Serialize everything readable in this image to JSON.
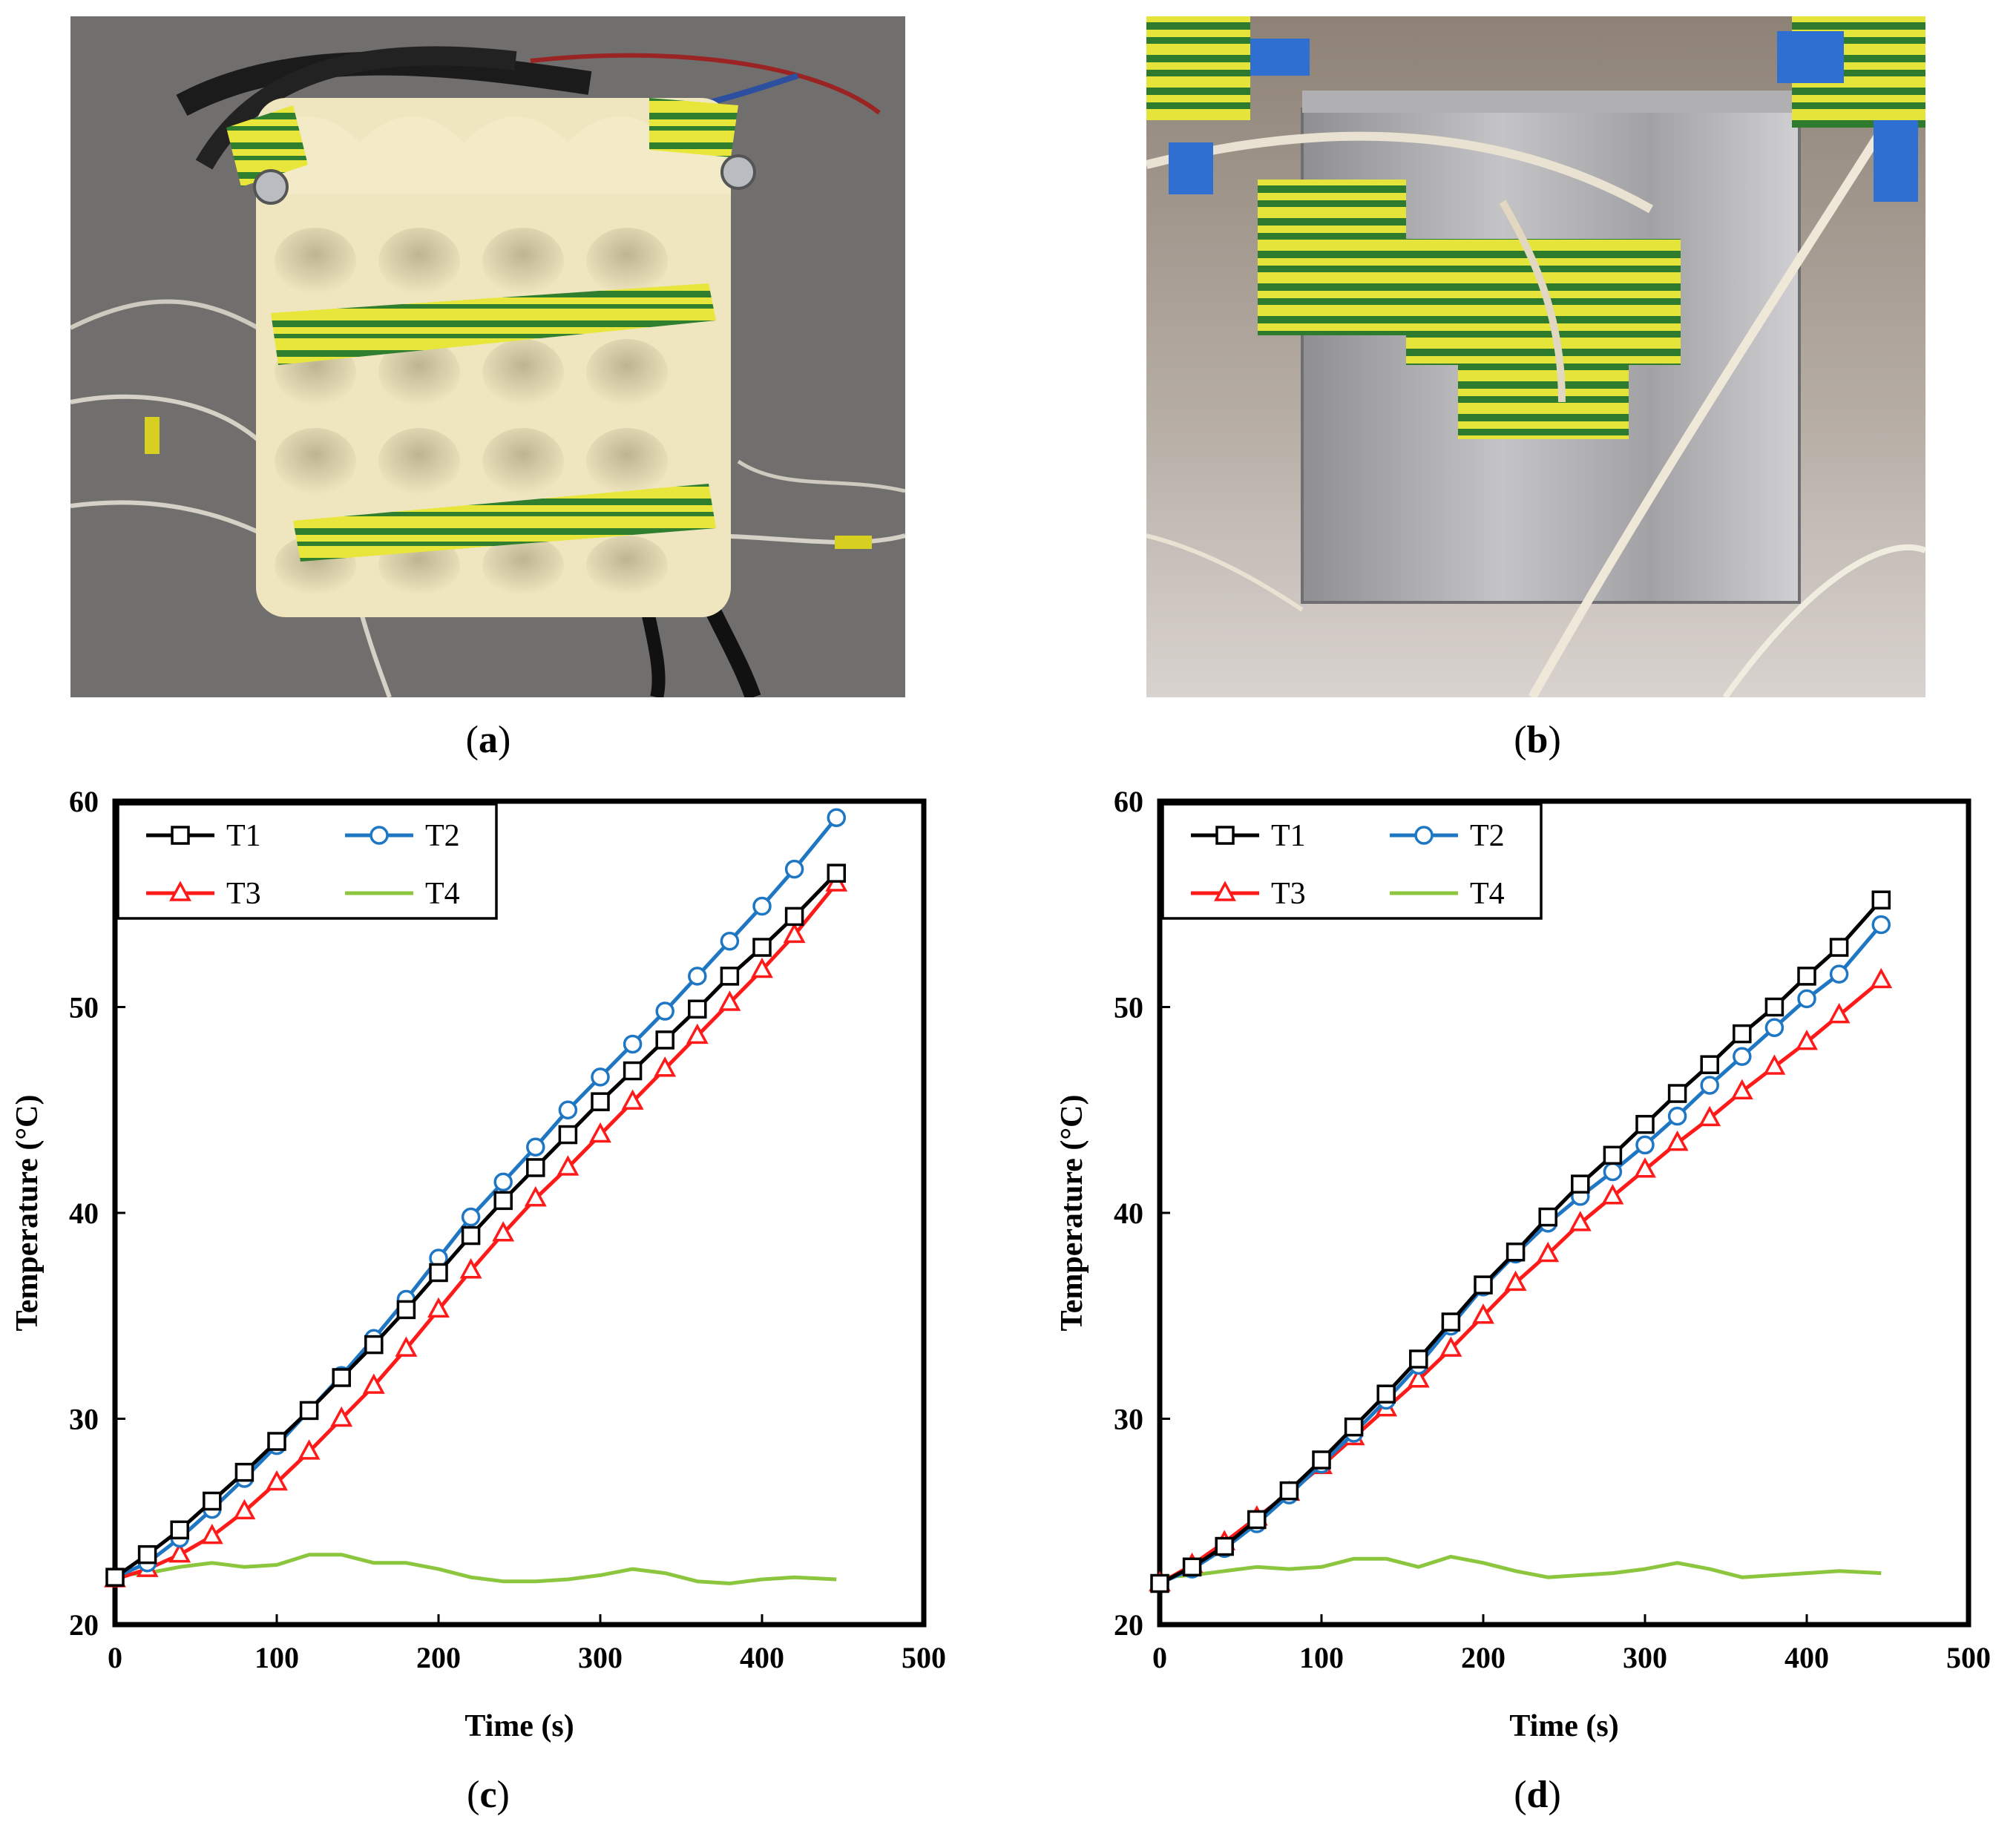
{
  "captions": {
    "a": "(a)",
    "b": "(b)",
    "c": "(c)",
    "d": "(d)"
  },
  "captions_parts": {
    "a": {
      "open": "(",
      "letter": "a",
      "close": ")"
    },
    "b": {
      "open": "(",
      "letter": "b",
      "close": ")"
    },
    "c": {
      "open": "(",
      "letter": "c",
      "close": ")"
    },
    "d": {
      "open": "(",
      "letter": "d",
      "close": ")"
    }
  },
  "colors": {
    "T1": "#000000",
    "T2": "#1f77c4",
    "T3": "#ff1a1a",
    "T4": "#8cc63f"
  },
  "chart_data": [
    {
      "id": "c",
      "type": "line",
      "title": "",
      "xlabel": "Time (s)",
      "ylabel": "Temperature (°C)",
      "xlim": [
        0,
        500
      ],
      "ylim": [
        20,
        60
      ],
      "xticks": [
        0,
        100,
        200,
        300,
        400,
        500
      ],
      "yticks": [
        20,
        30,
        40,
        50,
        60
      ],
      "grid": false,
      "legend_position": "top-left",
      "series": [
        {
          "name": "T1",
          "marker": "square",
          "x": [
            0,
            20,
            40,
            60,
            80,
            100,
            120,
            140,
            160,
            180,
            200,
            220,
            240,
            260,
            280,
            300,
            320,
            340,
            360,
            380,
            400,
            420,
            446
          ],
          "y": [
            22.3,
            23.4,
            24.6,
            26.0,
            27.4,
            28.9,
            30.4,
            32.0,
            33.6,
            35.3,
            37.1,
            38.9,
            40.6,
            42.2,
            43.8,
            45.4,
            46.9,
            48.4,
            49.9,
            51.5,
            52.9,
            54.4,
            56.5
          ]
        },
        {
          "name": "T2",
          "marker": "circle",
          "x": [
            0,
            20,
            40,
            60,
            80,
            100,
            120,
            140,
            160,
            180,
            200,
            220,
            240,
            260,
            280,
            300,
            320,
            340,
            360,
            380,
            400,
            420,
            446
          ],
          "y": [
            22.3,
            23.0,
            24.2,
            25.6,
            27.1,
            28.7,
            30.4,
            32.1,
            33.9,
            35.8,
            37.8,
            39.8,
            41.5,
            43.2,
            45.0,
            46.6,
            48.2,
            49.8,
            51.5,
            53.2,
            54.9,
            56.7,
            59.2
          ]
        },
        {
          "name": "T3",
          "marker": "triangle",
          "x": [
            0,
            20,
            40,
            60,
            80,
            100,
            120,
            140,
            160,
            180,
            200,
            220,
            240,
            260,
            280,
            300,
            320,
            340,
            360,
            380,
            400,
            420,
            446
          ],
          "y": [
            22.2,
            22.7,
            23.4,
            24.3,
            25.5,
            26.9,
            28.4,
            30.0,
            31.6,
            33.4,
            35.3,
            37.2,
            39.0,
            40.7,
            42.2,
            43.8,
            45.4,
            47.0,
            48.6,
            50.2,
            51.8,
            53.5,
            56.0
          ]
        },
        {
          "name": "T4",
          "marker": "none",
          "x": [
            0,
            20,
            40,
            60,
            80,
            100,
            120,
            140,
            160,
            180,
            200,
            220,
            240,
            260,
            280,
            300,
            320,
            340,
            360,
            380,
            400,
            420,
            446
          ],
          "y": [
            22.4,
            22.5,
            22.8,
            23.0,
            22.8,
            22.9,
            23.4,
            23.4,
            23.0,
            23.0,
            22.7,
            22.3,
            22.1,
            22.1,
            22.2,
            22.4,
            22.7,
            22.5,
            22.1,
            22.0,
            22.2,
            22.3,
            22.2
          ]
        }
      ]
    },
    {
      "id": "d",
      "type": "line",
      "title": "",
      "xlabel": "Time (s)",
      "ylabel": "Temperature (°C)",
      "xlim": [
        0,
        500
      ],
      "ylim": [
        20,
        60
      ],
      "xticks": [
        0,
        100,
        200,
        300,
        400,
        500
      ],
      "yticks": [
        20,
        30,
        40,
        50,
        60
      ],
      "grid": false,
      "legend_position": "top-left",
      "series": [
        {
          "name": "T1",
          "marker": "square",
          "x": [
            0,
            20,
            40,
            60,
            80,
            100,
            120,
            140,
            160,
            180,
            200,
            220,
            240,
            260,
            280,
            300,
            320,
            340,
            360,
            380,
            400,
            420,
            446
          ],
          "y": [
            22.0,
            22.8,
            23.8,
            25.1,
            26.5,
            28.0,
            29.6,
            31.2,
            32.9,
            34.7,
            36.5,
            38.1,
            39.8,
            41.4,
            42.8,
            44.3,
            45.8,
            47.2,
            48.7,
            50.0,
            51.5,
            52.9,
            55.2
          ]
        },
        {
          "name": "T2",
          "marker": "circle",
          "x": [
            0,
            20,
            40,
            60,
            80,
            100,
            120,
            140,
            160,
            180,
            200,
            220,
            240,
            260,
            280,
            300,
            320,
            340,
            360,
            380,
            400,
            420,
            446
          ],
          "y": [
            22.0,
            22.7,
            23.7,
            24.9,
            26.3,
            27.8,
            29.3,
            30.9,
            32.6,
            34.5,
            36.4,
            38.0,
            39.5,
            40.8,
            42.0,
            43.3,
            44.7,
            46.2,
            47.6,
            49.0,
            50.4,
            51.6,
            54.0
          ]
        },
        {
          "name": "T3",
          "marker": "triangle",
          "x": [
            0,
            20,
            40,
            60,
            80,
            100,
            120,
            140,
            160,
            180,
            200,
            220,
            240,
            260,
            280,
            300,
            320,
            340,
            360,
            380,
            400,
            420,
            446
          ],
          "y": [
            22.0,
            22.9,
            24.0,
            25.2,
            26.4,
            27.7,
            29.1,
            30.5,
            31.9,
            33.4,
            35.0,
            36.6,
            38.0,
            39.5,
            40.8,
            42.1,
            43.4,
            44.6,
            45.9,
            47.1,
            48.3,
            49.6,
            51.3
          ]
        },
        {
          "name": "T4",
          "marker": "none",
          "x": [
            0,
            20,
            40,
            60,
            80,
            100,
            120,
            140,
            160,
            180,
            200,
            220,
            240,
            260,
            280,
            300,
            320,
            340,
            360,
            380,
            400,
            420,
            446
          ],
          "y": [
            22.3,
            22.4,
            22.6,
            22.8,
            22.7,
            22.8,
            23.2,
            23.2,
            22.8,
            23.3,
            23.0,
            22.6,
            22.3,
            22.4,
            22.5,
            22.7,
            23.0,
            22.7,
            22.3,
            22.4,
            22.5,
            22.6,
            22.5
          ]
        }
      ]
    }
  ]
}
